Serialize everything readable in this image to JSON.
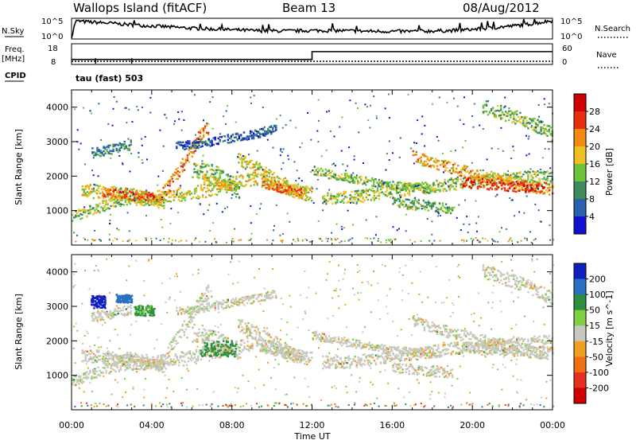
{
  "header": {
    "title": "Wallops Island (fitACF)",
    "beam": "Beam 13",
    "date": "08/Aug/2012"
  },
  "colors": {
    "power_scale": [
      "#1010d0",
      "#2a60b0",
      "#3f8a5a",
      "#6cc43a",
      "#f0c020",
      "#f08a10",
      "#e83010",
      "#d00000"
    ],
    "velocity_scale": [
      "#1020c0",
      "#2a70c0",
      "#2a9040",
      "#80d040",
      "#c8c8c0",
      "#f0a020",
      "#f07010",
      "#e83020",
      "#d00000"
    ]
  },
  "chart_data": [
    {
      "type": "line",
      "name": "noise-panel",
      "left_label": "N.Sky",
      "right_label": "N.Search",
      "left_ticks": [
        "10^5",
        "10^0"
      ],
      "right_ticks": [
        "10^5",
        "10^0"
      ],
      "x": [
        0,
        0.2,
        1,
        2,
        3,
        4,
        5,
        6,
        7,
        8,
        9,
        10,
        11,
        12,
        13,
        14,
        15,
        16,
        17,
        18,
        19,
        20,
        21,
        22,
        23,
        24
      ],
      "series": [
        {
          "name": "N.Sky",
          "values_log10": [
            0,
            4.5,
            4.2,
            3.9,
            3.5,
            3.2,
            2.9,
            2.6,
            2.4,
            2.2,
            2.0,
            1.9,
            1.9,
            2.0,
            2.0,
            1.9,
            1.8,
            1.8,
            1.8,
            1.9,
            2.0,
            2.3,
            2.7,
            3.2,
            3.8,
            4.6
          ]
        }
      ],
      "ylim_log10": [
        0,
        5
      ]
    },
    {
      "type": "line",
      "name": "frequency-panel",
      "left_label_top": "Freq.",
      "left_label_unit": "[MHz]",
      "left_ticks": [
        "18",
        "8"
      ],
      "right_label": "Nave",
      "right_ticks": [
        "60",
        "0"
      ],
      "series": [
        {
          "name": "Freq.",
          "x": [
            0,
            12,
            12,
            24
          ],
          "values": [
            10.2,
            10.2,
            14.3,
            14.3
          ]
        },
        {
          "name": "Nave",
          "x": [
            0,
            24
          ],
          "values": [
            10,
            10
          ]
        }
      ],
      "ylim_freq": [
        8,
        18
      ],
      "cpid_label": "CPID",
      "cpid_text": "tau (fast) 503"
    },
    {
      "type": "heatmap",
      "name": "power-panel",
      "ylabel": "Slant Range [km]",
      "yticks": [
        1000,
        2000,
        3000,
        4000
      ],
      "ylim": [
        0,
        4500
      ],
      "xlim": [
        0,
        24
      ],
      "colorbar_label": "Power [dB]",
      "colorbar_ticks": [
        "28",
        "24",
        "20",
        "16",
        "12",
        "8",
        "4"
      ],
      "colorbar_range": [
        0,
        32
      ],
      "bands": [
        {
          "t": [
            0,
            1,
            2,
            3,
            4,
            4.6
          ],
          "r": [
            850,
            1050,
            1250,
            1350,
            1300,
            1250
          ],
          "w": 150,
          "v": 14
        },
        {
          "t": [
            0.5,
            1.5,
            2.5,
            3.5,
            4.5,
            5,
            6,
            7,
            8,
            9,
            10,
            11,
            12
          ],
          "r": [
            1600,
            1550,
            1500,
            1450,
            1400,
            1450,
            1550,
            1650,
            1800,
            1950,
            1850,
            1600,
            1500
          ],
          "w": 200,
          "v": 17
        },
        {
          "t": [
            1.5,
            2.5,
            3.5,
            4.5
          ],
          "r": [
            1550,
            1500,
            1450,
            1350
          ],
          "w": 130,
          "v": 24
        },
        {
          "t": [
            4.3,
            5,
            5.7,
            6.3,
            6.8
          ],
          "r": [
            1300,
            1900,
            2500,
            3100,
            3450
          ],
          "w": 200,
          "v": 22
        },
        {
          "t": [
            6,
            7,
            7.6,
            8,
            8.4
          ],
          "r": [
            2200,
            2150,
            2000,
            1800,
            1550
          ],
          "w": 220,
          "v": 13
        },
        {
          "t": [
            6.5,
            7,
            7.5,
            8
          ],
          "r": [
            1950,
            1900,
            1800,
            1750
          ],
          "w": 160,
          "v": 18
        },
        {
          "t": [
            8.3,
            9,
            10,
            11,
            11.7
          ],
          "r": [
            2500,
            2300,
            2000,
            1650,
            1500
          ],
          "w": 200,
          "v": 17
        },
        {
          "t": [
            9.5,
            10.5,
            11.5
          ],
          "r": [
            1800,
            1650,
            1550
          ],
          "w": 120,
          "v": 23
        },
        {
          "t": [
            12,
            13,
            14,
            15,
            16,
            17,
            18
          ],
          "r": [
            2200,
            2050,
            1950,
            1850,
            1750,
            1700,
            1700
          ],
          "w": 120,
          "v": 14
        },
        {
          "t": [
            12.5,
            14,
            15,
            16,
            17,
            18,
            19,
            20,
            21,
            22,
            23,
            24
          ],
          "r": [
            1400,
            1400,
            1500,
            1600,
            1650,
            1700,
            1800,
            1850,
            1900,
            1950,
            2000,
            2000
          ],
          "w": 180,
          "v": 15
        },
        {
          "t": [
            16,
            17,
            18,
            19
          ],
          "r": [
            1250,
            1200,
            1150,
            1050
          ],
          "w": 150,
          "v": 12
        },
        {
          "t": [
            17,
            18,
            19,
            20,
            21,
            22,
            23,
            24
          ],
          "r": [
            2600,
            2400,
            2250,
            2100,
            1950,
            1850,
            1700,
            1650
          ],
          "w": 170,
          "v": 20
        },
        {
          "t": [
            19.5,
            20.5,
            21.5,
            22.5,
            23.5
          ],
          "r": [
            1850,
            1800,
            1750,
            1700,
            1650
          ],
          "w": 150,
          "v": 27
        },
        {
          "t": [
            20.5,
            21.5,
            22.5,
            23.5,
            24
          ],
          "r": [
            4050,
            3850,
            3650,
            3400,
            3200
          ],
          "w": 200,
          "v": 13
        },
        {
          "t": [
            5.2,
            6.2,
            7.2,
            8.2,
            9.2,
            10.2
          ],
          "r": [
            2900,
            2950,
            3050,
            3150,
            3250,
            3400
          ],
          "w": 120,
          "v": 6
        },
        {
          "t": [
            1,
            2,
            3
          ],
          "r": [
            2700,
            2800,
            2950
          ],
          "w": 140,
          "v": 9
        }
      ]
    },
    {
      "type": "heatmap",
      "name": "velocity-panel",
      "ylabel": "Slant Range [km]",
      "yticks": [
        1000,
        2000,
        3000,
        4000
      ],
      "ylim": [
        0,
        4500
      ],
      "xlim": [
        0,
        24
      ],
      "xticks": [
        "00:00",
        "04:00",
        "08:00",
        "12:00",
        "16:00",
        "20:00",
        "00:00"
      ],
      "xlabel": "Time UT",
      "colorbar_label": "Velocity [m s^-1]",
      "colorbar_ticks": [
        "200",
        "100",
        "50",
        "15",
        "-15",
        "-50",
        "-100",
        "-200"
      ],
      "blobs": [
        {
          "t": 1.3,
          "r": 3150,
          "dt": 0.35,
          "dr": 180,
          "v": 220
        },
        {
          "t": 2.6,
          "r": 3250,
          "dt": 0.4,
          "dr": 120,
          "v": 180
        },
        {
          "t": 3.6,
          "r": 2900,
          "dt": 0.5,
          "dr": 150,
          "v": 60
        },
        {
          "t": 7.3,
          "r": 1800,
          "dt": 0.9,
          "dr": 230,
          "v": 70
        }
      ]
    }
  ]
}
